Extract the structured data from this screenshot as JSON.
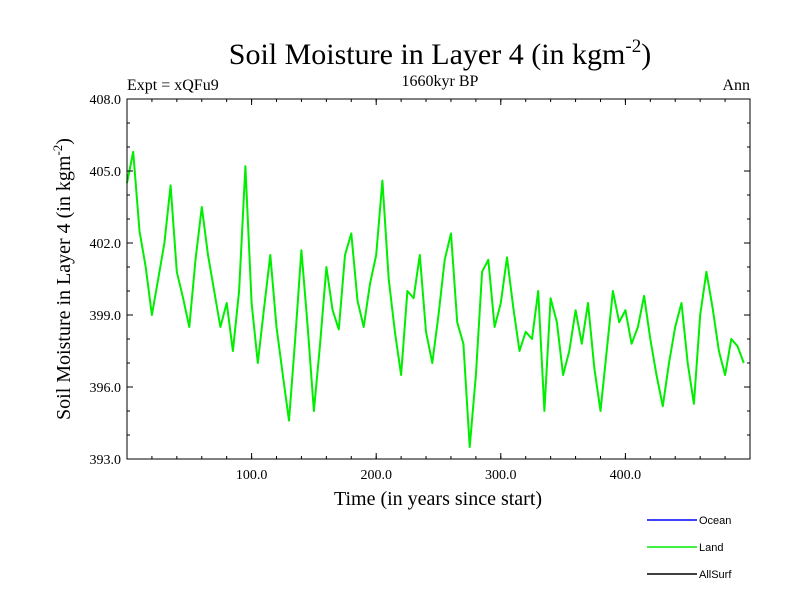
{
  "chart_data": {
    "type": "line",
    "title": "Soil Moisture in Layer 4 (in kgm",
    "title_sup": "-2",
    "title_close": ")",
    "subtitle": "1660kyr BP",
    "left_label": "Expt = xQFu9",
    "right_label": "Ann",
    "xlabel": "Time (in years since start)",
    "ylabel": "Soil Moisture in Layer 4 (in kgm",
    "ylabel_sup": "-2",
    "ylabel_close": ")",
    "xlim": [
      0,
      500
    ],
    "ylim": [
      393.0,
      408.0
    ],
    "x_ticks": [
      100,
      200,
      300,
      400
    ],
    "x_tick_labels": [
      "100.0",
      "200.0",
      "300.0",
      "400.0"
    ],
    "y_ticks": [
      393,
      396,
      399,
      402,
      405,
      408
    ],
    "y_tick_labels": [
      "393.0",
      "396.0",
      "399.0",
      "402.0",
      "405.0",
      "408.0"
    ],
    "legend": [
      {
        "name": "Ocean",
        "color": "#0000ff"
      },
      {
        "name": "Land",
        "color": "#00ee00"
      },
      {
        "name": "AllSurf",
        "color": "#000000"
      }
    ],
    "series": [
      {
        "name": "Land",
        "color": "#00ee00",
        "x_start": 0,
        "x_step": 5,
        "values": [
          404.5,
          405.8,
          402.5,
          401.0,
          399.0,
          400.5,
          402.0,
          404.4,
          400.8,
          399.7,
          398.5,
          401.3,
          403.5,
          401.5,
          400.0,
          398.5,
          399.5,
          397.5,
          400.0,
          405.2,
          399.5,
          397.0,
          399.3,
          401.5,
          398.5,
          396.5,
          394.6,
          398.0,
          401.7,
          398.5,
          395.0,
          397.8,
          401.0,
          399.2,
          398.4,
          401.5,
          402.4,
          399.6,
          398.5,
          400.3,
          401.5,
          404.6,
          400.5,
          398.3,
          396.5,
          400.0,
          399.7,
          401.5,
          398.3,
          397.0,
          399.0,
          401.3,
          402.4,
          398.7,
          397.8,
          393.5,
          396.5,
          400.8,
          401.3,
          398.5,
          399.5,
          401.4,
          399.3,
          397.5,
          398.3,
          398.0,
          400.0,
          395.0,
          399.7,
          398.7,
          396.5,
          397.5,
          399.2,
          397.8,
          399.5,
          396.8,
          395.0,
          397.5,
          400.0,
          398.7,
          399.2,
          397.8,
          398.5,
          399.8,
          398.0,
          396.5,
          395.2,
          397.0,
          398.5,
          399.5,
          397.0,
          395.3,
          399.0,
          400.8,
          399.3,
          397.5,
          396.5,
          398.0,
          397.7,
          397.0
        ]
      },
      {
        "name": "Ocean",
        "color": "#0000ff",
        "values": []
      },
      {
        "name": "AllSurf",
        "color": "#000000",
        "values": []
      }
    ]
  }
}
